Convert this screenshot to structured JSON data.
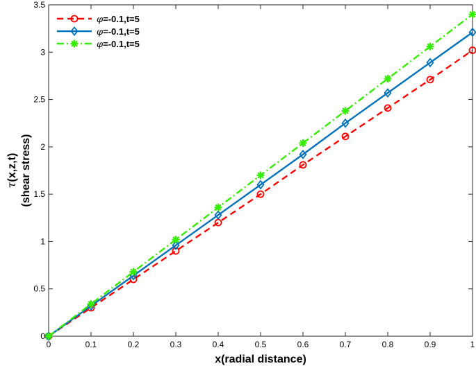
{
  "chart_data": {
    "type": "line",
    "xlabel": "x(radial distance)",
    "ylabel_symbol": "τ",
    "ylabel_args": "(x,z,t)",
    "ylabel_line2": "(shear stress)",
    "xlim": [
      0,
      1
    ],
    "ylim": [
      0,
      3.5
    ],
    "xticks": [
      "0",
      "0.1",
      "0.2",
      "0.3",
      "0.4",
      "0.5",
      "0.6",
      "0.7",
      "0.8",
      "0.9",
      "1"
    ],
    "yticks": [
      "0",
      "0.5",
      "1",
      "1.5",
      "2",
      "2.5",
      "3",
      "3.5"
    ],
    "grid": false,
    "legend_position": "top-left",
    "x": [
      0,
      0.1,
      0.2,
      0.3,
      0.4,
      0.5,
      0.6,
      0.7,
      0.8,
      0.9,
      1.0
    ],
    "series": [
      {
        "name_symbol": "φ",
        "name_rest": "=-0.1,t=5",
        "color": "#ff0000",
        "line_style": "dashed",
        "marker": "circle",
        "values": [
          0,
          0.3,
          0.6,
          0.9,
          1.2,
          1.5,
          1.81,
          2.11,
          2.41,
          2.71,
          3.02
        ]
      },
      {
        "name_symbol": "φ",
        "name_rest": "=-0.1,t=5",
        "color": "#0072bd",
        "line_style": "solid",
        "marker": "diamond",
        "values": [
          0,
          0.32,
          0.64,
          0.96,
          1.28,
          1.6,
          1.92,
          2.25,
          2.57,
          2.89,
          3.21
        ]
      },
      {
        "name_symbol": "φ",
        "name_rest": "=-0.1,t=5",
        "color": "#33ee00",
        "line_style": "dashdot",
        "marker": "asterisk",
        "values": [
          0,
          0.34,
          0.68,
          1.02,
          1.36,
          1.7,
          2.04,
          2.38,
          2.72,
          3.06,
          3.4
        ]
      }
    ]
  }
}
